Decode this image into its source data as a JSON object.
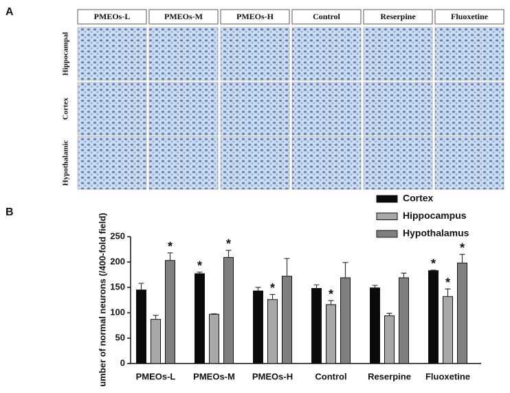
{
  "panel_labels": [
    "A",
    "B"
  ],
  "panel_a": {
    "columns": [
      "PMEOs-L",
      "PMEOs-M",
      "PMEOs-H",
      "Control",
      "Reserpine",
      "Fluoxetine"
    ],
    "rows": [
      "Hippocampal",
      "Cortex",
      "Hypothalamic"
    ]
  },
  "chart_data": {
    "type": "bar",
    "y_label": "umber of normal neurons (/400-fold field)",
    "categories": [
      "PMEOs-L",
      "PMEOs-M",
      "PMEOs-H",
      "Control",
      "Reserpine",
      "Fluoxetine"
    ],
    "series": [
      {
        "name": "Cortex",
        "color": "#0a0a0a",
        "values": [
          145,
          177,
          143,
          148,
          149,
          183
        ],
        "errors": [
          13,
          3,
          7,
          7,
          5,
          1
        ],
        "markers": [
          null,
          "*",
          null,
          null,
          null,
          "*"
        ]
      },
      {
        "name": "Hippocampus",
        "color": "#a8a8a8",
        "values": [
          87,
          97,
          126,
          116,
          94,
          132
        ],
        "errors": [
          8,
          1,
          10,
          8,
          5,
          15
        ],
        "markers": [
          null,
          null,
          "*",
          "*",
          null,
          "*"
        ]
      },
      {
        "name": "Hypothalamus",
        "color": "#7f7f7f",
        "values": [
          203,
          209,
          172,
          169,
          169,
          198
        ],
        "errors": [
          15,
          14,
          35,
          30,
          9,
          17
        ],
        "markers": [
          "*",
          "*",
          null,
          null,
          null,
          "*"
        ]
      }
    ],
    "ylim": [
      0,
      250
    ],
    "yticks": [
      0,
      50,
      100,
      150,
      200,
      250
    ],
    "grid": false,
    "legend": "top-right"
  }
}
